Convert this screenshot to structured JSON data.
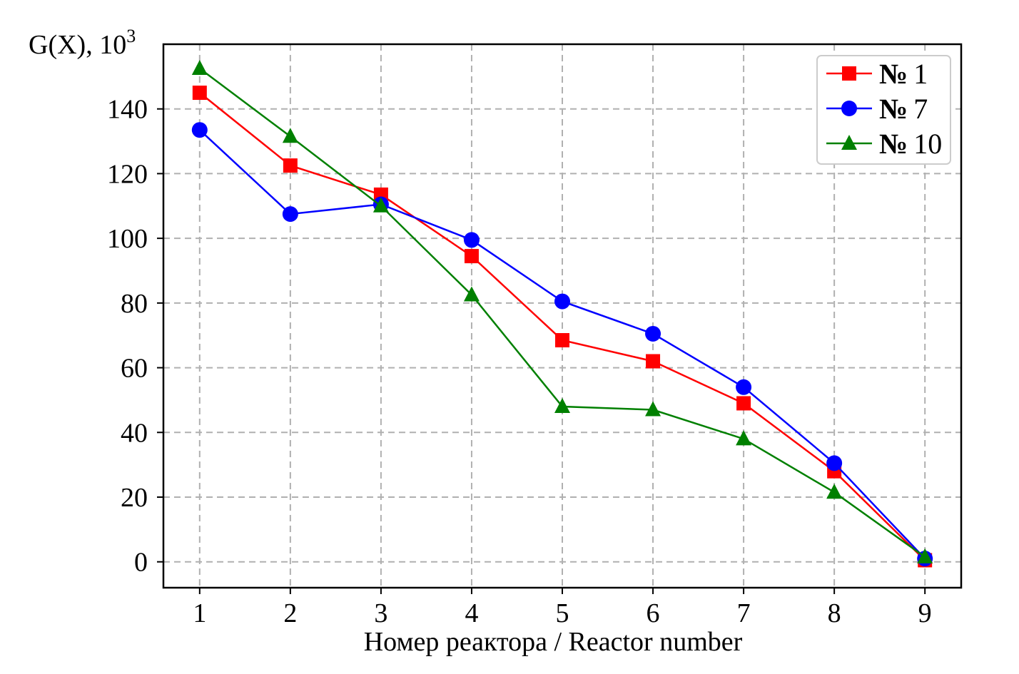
{
  "chart_data": {
    "type": "line",
    "ylabel_prefix": "G(X), 10",
    "ylabel_exponent": "3",
    "xlabel": "Номер реактора / Reactor number",
    "x": [
      1,
      2,
      3,
      4,
      5,
      6,
      7,
      8,
      9
    ],
    "xlim": [
      0.6,
      9.4
    ],
    "ylim": [
      -8,
      160
    ],
    "yticks": [
      0,
      20,
      40,
      60,
      80,
      100,
      120,
      140
    ],
    "grid": true,
    "legend_position": "top-right",
    "series": [
      {
        "name": "№ 1",
        "symbol": "№",
        "number": "1",
        "color": "#ff0000",
        "marker": "square",
        "values": [
          145,
          122.5,
          113.5,
          94.5,
          68.5,
          62,
          49,
          28,
          0.5
        ]
      },
      {
        "name": "№ 7",
        "symbol": "№",
        "number": "7",
        "color": "#0000ff",
        "marker": "circle",
        "values": [
          133.5,
          107.5,
          110.5,
          99.5,
          80.5,
          70.5,
          54,
          30.5,
          1
        ]
      },
      {
        "name": "№ 10",
        "symbol": "№",
        "number": "10",
        "color": "#008000",
        "marker": "triangle",
        "values": [
          152.5,
          131.5,
          110,
          82.5,
          48,
          47,
          38,
          21.5,
          1.5
        ]
      }
    ]
  }
}
